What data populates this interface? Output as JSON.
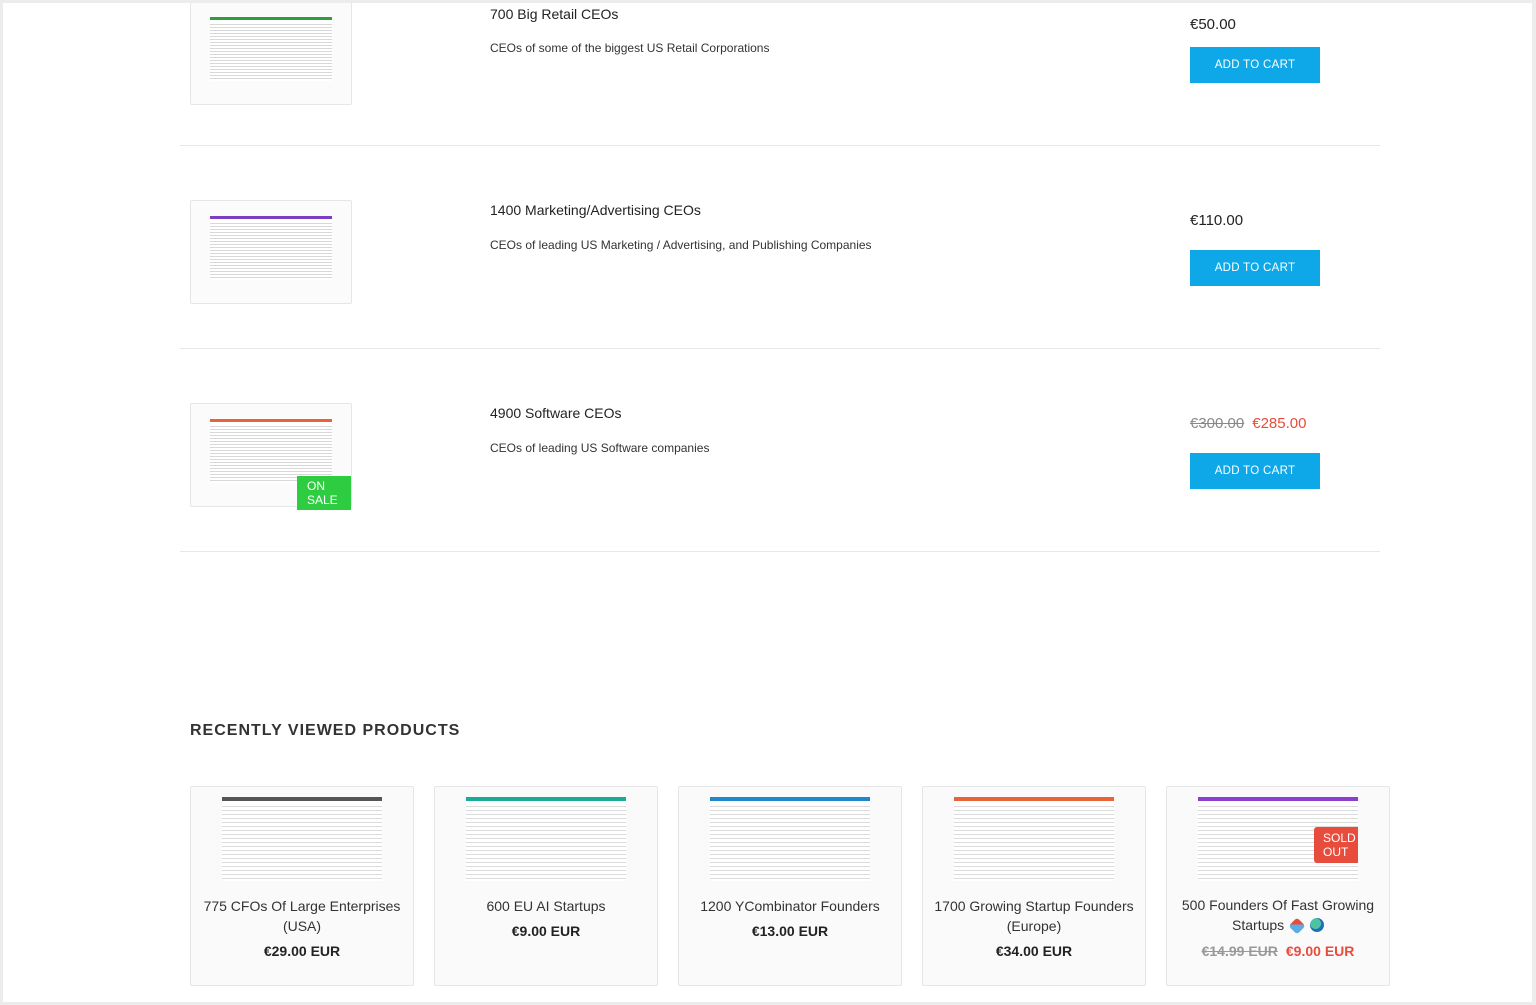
{
  "products": [
    {
      "title": "700 Big Retail CEOs",
      "description": "CEOs of some of the biggest US Retail Corporations",
      "price": "€50.00",
      "button": "ADD TO CART",
      "accent": "#2e9e3e"
    },
    {
      "title": "1400 Marketing/Advertising CEOs",
      "description": "CEOs of leading US Marketing / Advertising, and Publishing Companies",
      "price": "€110.00",
      "button": "ADD TO CART",
      "accent": "#7b3fc4"
    },
    {
      "title": "4900 Software CEOs",
      "description": "CEOs of leading US Software companies",
      "old_price": "€300.00",
      "price": "€285.00",
      "badge": "ON SALE",
      "button": "ADD TO CART",
      "accent": "#e8633a"
    }
  ],
  "recently_viewed": {
    "heading": "RECENTLY VIEWED PRODUCTS",
    "items": [
      {
        "name": "775 CFOs Of Large Enterprises (USA)",
        "price": "€29.00 EUR",
        "accent": "#555555"
      },
      {
        "name": "600 EU AI Startups",
        "price": "€9.00 EUR",
        "accent": "#1aa99a"
      },
      {
        "name": "1200 YCombinator Founders",
        "price": "€13.00 EUR",
        "accent": "#1e88c8"
      },
      {
        "name": "1700 Growing Startup Founders (Europe)",
        "price": "€34.00 EUR",
        "accent": "#e8633a"
      },
      {
        "name": "500 Founders Of Fast Growing Startups",
        "old_price": "€14.99 EUR",
        "price": "€9.00 EUR",
        "badge": "SOLD OUT",
        "accent": "#8a3fd1",
        "icons": [
          "rocket-icon",
          "globe-icon"
        ]
      }
    ]
  },
  "colors": {
    "button": "#0ea8e8",
    "sale_badge": "#2ecc40",
    "sold_out_badge": "#e74c3c",
    "sale_price": "#e74c3c"
  }
}
